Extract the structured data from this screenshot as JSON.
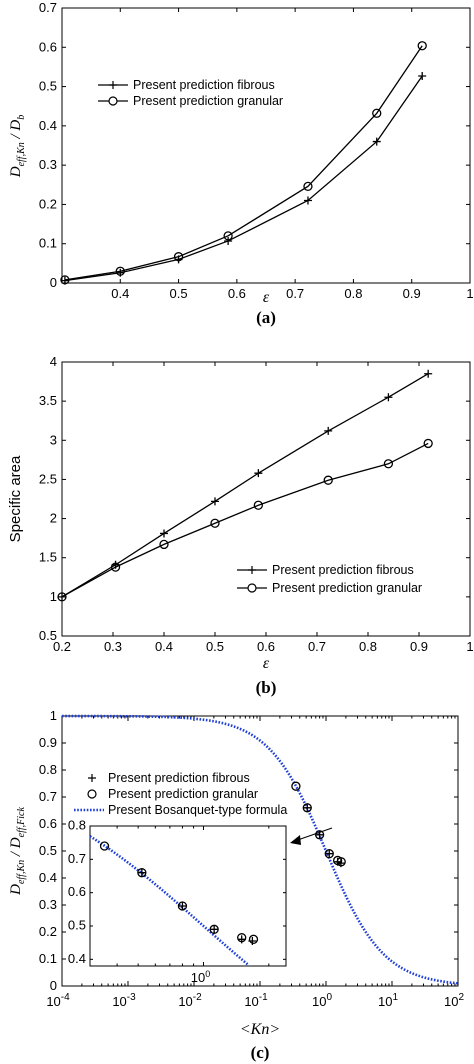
{
  "chart_data": [
    {
      "type": "line",
      "panel_label": "(a)",
      "xlabel": "ε",
      "ylabel_main": "D",
      "ylabel_main_sub": "eff,Kn",
      "ylabel_den": "D",
      "ylabel_den_sub": "b",
      "ylabel_sep": " / ",
      "xlim": [
        0.3,
        1
      ],
      "ylim": [
        0,
        0.7
      ],
      "xticks": [
        "0.4",
        "0.5",
        "0.6",
        "0.7",
        "0.8",
        "0.9",
        "1"
      ],
      "yticks": [
        "0",
        "0.1",
        "0.2",
        "0.3",
        "0.4",
        "0.5",
        "0.6",
        "0.7"
      ],
      "legend_position": "upper-left",
      "series": [
        {
          "name": "Present prediction fibrous",
          "marker": "plus",
          "x": [
            0.305,
            0.4,
            0.5,
            0.585,
            0.722,
            0.84,
            0.918
          ],
          "y": [
            0.006,
            0.026,
            0.06,
            0.107,
            0.21,
            0.36,
            0.527
          ]
        },
        {
          "name": "Present prediction granular",
          "marker": "circle",
          "x": [
            0.305,
            0.4,
            0.5,
            0.585,
            0.722,
            0.84,
            0.918
          ],
          "y": [
            0.008,
            0.03,
            0.067,
            0.12,
            0.246,
            0.432,
            0.604
          ]
        }
      ]
    },
    {
      "type": "line",
      "panel_label": "(b)",
      "xlabel": "ε",
      "ylabel": "Specific area",
      "xlim": [
        0.2,
        1
      ],
      "ylim": [
        0.5,
        4
      ],
      "xticks": [
        "0.2",
        "0.3",
        "0.4",
        "0.5",
        "0.6",
        "0.7",
        "0.8",
        "0.9",
        "1"
      ],
      "yticks": [
        "0.5",
        "1",
        "1.5",
        "2",
        "2.5",
        "3",
        "3.5",
        "4"
      ],
      "legend_position": "lower-right",
      "series": [
        {
          "name": "Present prediction fibrous",
          "marker": "plus",
          "x": [
            0.2,
            0.305,
            0.4,
            0.5,
            0.585,
            0.722,
            0.84,
            0.918
          ],
          "y": [
            1.0,
            1.41,
            1.81,
            2.22,
            2.58,
            3.12,
            3.55,
            3.85
          ]
        },
        {
          "name": "Present prediction granular",
          "marker": "circle",
          "x": [
            0.2,
            0.305,
            0.4,
            0.5,
            0.585,
            0.722,
            0.84,
            0.918
          ],
          "y": [
            1.0,
            1.38,
            1.67,
            1.94,
            2.17,
            2.49,
            2.7,
            2.96
          ]
        }
      ]
    },
    {
      "type": "scatter",
      "panel_label": "(c)",
      "xlabel": "<Kn>",
      "ylabel_main": "D",
      "ylabel_main_sub": "eff,Kn",
      "ylabel_den": "D",
      "ylabel_den_sub": "eff,Fick",
      "ylabel_sep": " / ",
      "xscale": "log",
      "xlim": [
        0.0001,
        100
      ],
      "ylim": [
        0,
        1
      ],
      "xticks_base": "10",
      "xticks_exp": [
        "-4",
        "-3",
        "-2",
        "-1",
        "0",
        "1",
        "2"
      ],
      "yticks": [
        "0",
        "0.1",
        "0.2",
        "0.3",
        "0.4",
        "0.5",
        "0.6",
        "0.7",
        "0.8",
        "0.9",
        "1"
      ],
      "legend_position": "middle-left",
      "series": [
        {
          "name": "Present prediction fibrous",
          "marker": "plus",
          "x": [
            0.52,
            0.8,
            1.12,
            1.5,
            1.68
          ],
          "y": [
            0.66,
            0.56,
            0.49,
            0.46,
            0.455
          ]
        },
        {
          "name": "Present prediction granular",
          "marker": "circle",
          "x": [
            0.35,
            0.52,
            0.8,
            1.12,
            1.5,
            1.7
          ],
          "y": [
            0.74,
            0.66,
            0.56,
            0.49,
            0.465,
            0.46
          ]
        },
        {
          "name": "Present Bosanquet-type formula",
          "marker": "none",
          "style": "dotted",
          "color": "#1f3fd6",
          "formula": "1/(1+Kn)"
        }
      ],
      "inset": {
        "xscale": "log",
        "xlim": [
          0.3,
          2.4
        ],
        "ylim": [
          0.38,
          0.8
        ],
        "xticks_base": "10",
        "xticks_exp": [
          "0"
        ],
        "yticks": [
          "0.4",
          "0.5",
          "0.6",
          "0.7",
          "0.8"
        ]
      }
    }
  ]
}
